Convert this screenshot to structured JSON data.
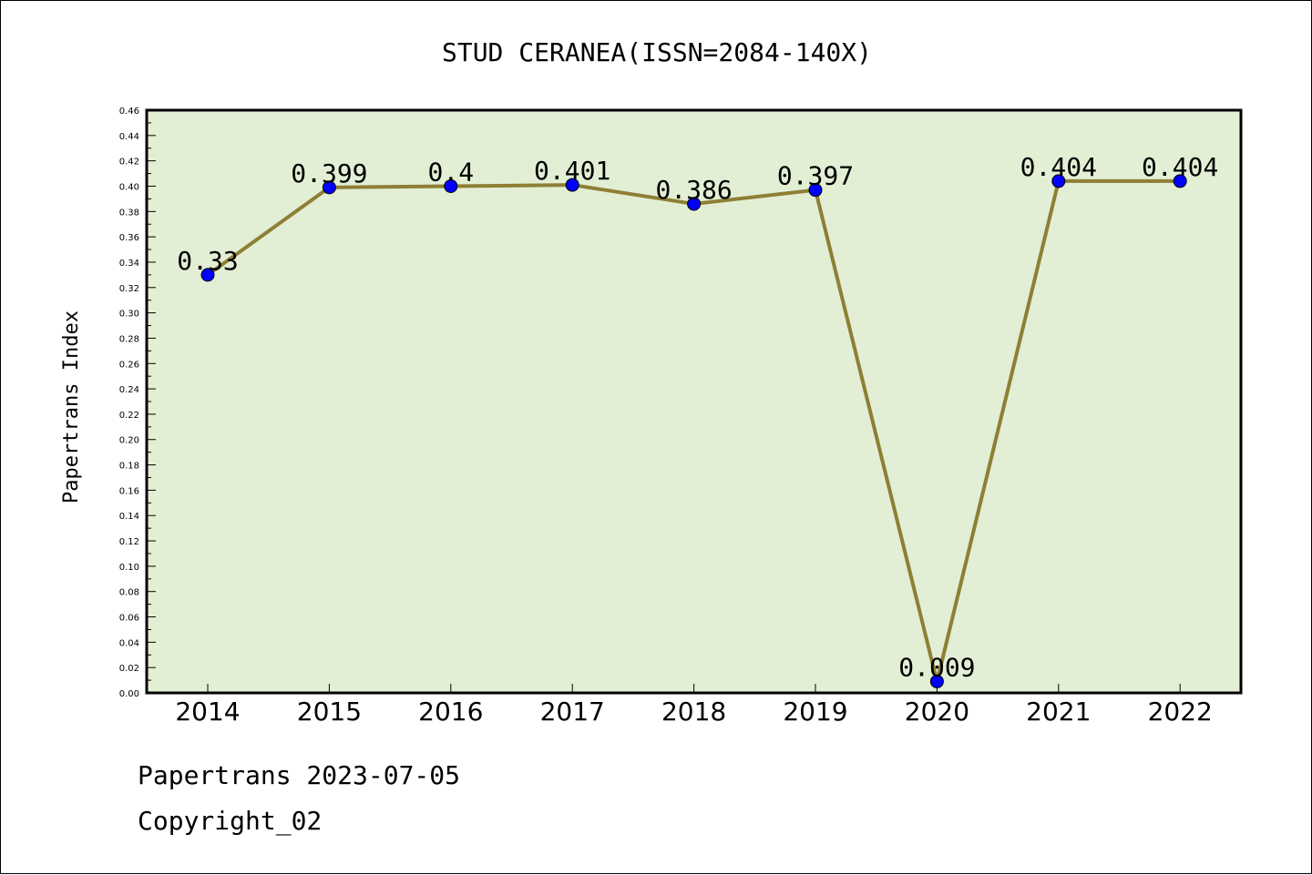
{
  "chart_data": {
    "type": "line",
    "title": "STUD CERANEA(ISSN=2084-140X)",
    "xlabel": "",
    "ylabel": "Papertrans Index",
    "categories": [
      "2014",
      "2015",
      "2016",
      "2017",
      "2018",
      "2019",
      "2020",
      "2021",
      "2022"
    ],
    "values": [
      0.33,
      0.399,
      0.4,
      0.401,
      0.386,
      0.397,
      0.009,
      0.404,
      0.404
    ],
    "data_labels": [
      "0.33",
      "0.399",
      "0.4",
      "0.401",
      "0.386",
      "0.397",
      "0.009",
      "0.404",
      "0.404"
    ],
    "ylim": [
      0,
      0.46
    ],
    "yticks": [
      "0.00",
      "0.02",
      "0.04",
      "0.06",
      "0.08",
      "0.10",
      "0.12",
      "0.14",
      "0.16",
      "0.18",
      "0.20",
      "0.22",
      "0.24",
      "0.26",
      "0.28",
      "0.30",
      "0.32",
      "0.34",
      "0.36",
      "0.38",
      "0.40",
      "0.42",
      "0.44",
      "0.46"
    ],
    "grid": false,
    "legend": "none",
    "colors": {
      "plot_background": "#e2efd4",
      "line": "#8e7f35",
      "marker": "#0000ff"
    }
  },
  "footer": {
    "date_line": "Papertrans 2023-07-05",
    "copyright": "Copyright_02"
  }
}
